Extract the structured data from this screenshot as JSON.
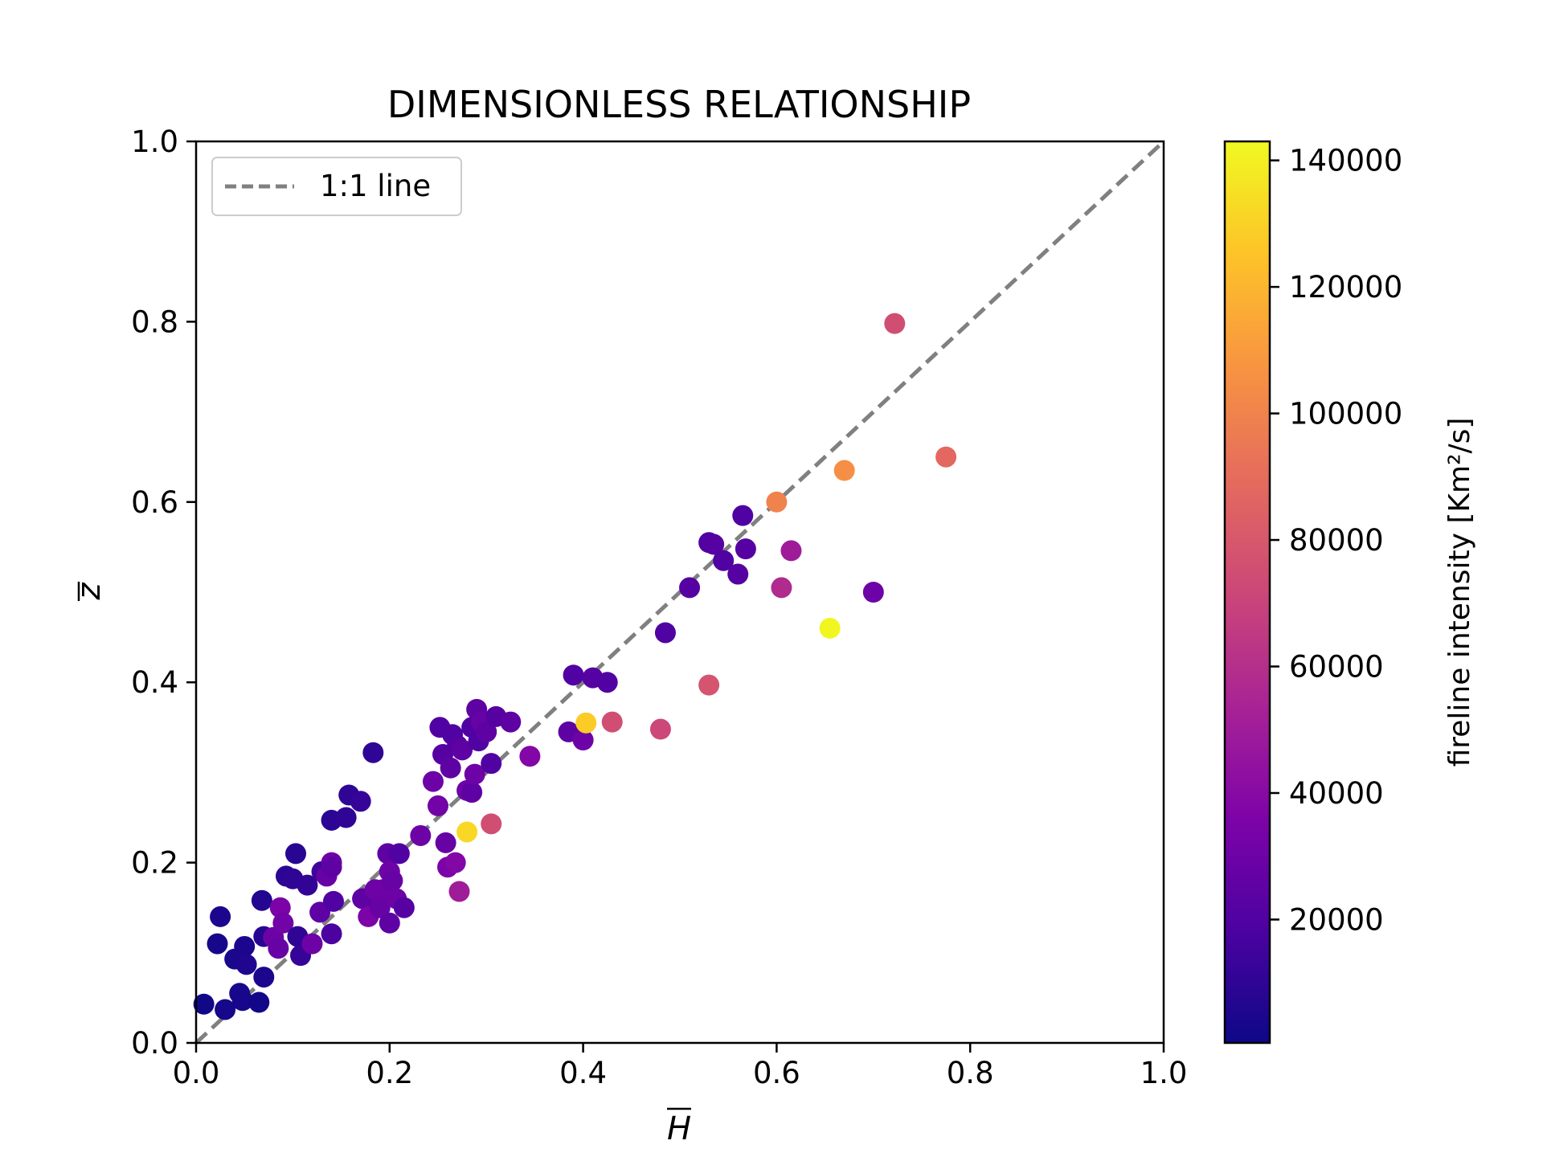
{
  "chart_data": {
    "type": "scatter",
    "title": "DIMENSIONLESS RELATIONSHIP",
    "xlabel": "H",
    "ylabel": "z",
    "xlim": [
      0.0,
      1.0
    ],
    "ylim": [
      0.0,
      1.0
    ],
    "xticks": [
      "0.0",
      "0.2",
      "0.4",
      "0.6",
      "0.8",
      "1.0"
    ],
    "yticks": [
      "0.0",
      "0.2",
      "0.4",
      "0.6",
      "0.8",
      "1.0"
    ],
    "grid": false,
    "legend": {
      "placement": "top-left",
      "entries": [
        "1:1 line"
      ]
    },
    "reference_line": {
      "name": "1:1 line",
      "style": "dashed",
      "color": "#808080",
      "x": [
        0,
        1
      ],
      "y": [
        0,
        1
      ]
    },
    "colorbar": {
      "label": "fireline intensity [Km²/s]",
      "colormap": "plasma",
      "min": 500,
      "max": 143000,
      "ticks": [
        20000,
        40000,
        60000,
        80000,
        100000,
        120000,
        140000
      ],
      "tick_labels": [
        "20000",
        "40000",
        "60000",
        "80000",
        "100000",
        "120000",
        "140000"
      ]
    },
    "points": [
      {
        "x": 0.008,
        "y": 0.043,
        "c": 1500
      },
      {
        "x": 0.03,
        "y": 0.037,
        "c": 3000
      },
      {
        "x": 0.045,
        "y": 0.055,
        "c": 4000
      },
      {
        "x": 0.048,
        "y": 0.047,
        "c": 3500
      },
      {
        "x": 0.065,
        "y": 0.045,
        "c": 2000
      },
      {
        "x": 0.07,
        "y": 0.073,
        "c": 5000
      },
      {
        "x": 0.022,
        "y": 0.11,
        "c": 3000
      },
      {
        "x": 0.025,
        "y": 0.14,
        "c": 5000
      },
      {
        "x": 0.04,
        "y": 0.093,
        "c": 4000
      },
      {
        "x": 0.05,
        "y": 0.107,
        "c": 5000
      },
      {
        "x": 0.052,
        "y": 0.087,
        "c": 6000
      },
      {
        "x": 0.068,
        "y": 0.158,
        "c": 7000
      },
      {
        "x": 0.07,
        "y": 0.118,
        "c": 8000
      },
      {
        "x": 0.08,
        "y": 0.117,
        "c": 30000
      },
      {
        "x": 0.085,
        "y": 0.105,
        "c": 28000
      },
      {
        "x": 0.087,
        "y": 0.15,
        "c": 35000
      },
      {
        "x": 0.09,
        "y": 0.133,
        "c": 32000
      },
      {
        "x": 0.093,
        "y": 0.185,
        "c": 9000
      },
      {
        "x": 0.1,
        "y": 0.182,
        "c": 10000
      },
      {
        "x": 0.103,
        "y": 0.21,
        "c": 8000
      },
      {
        "x": 0.105,
        "y": 0.118,
        "c": 10000
      },
      {
        "x": 0.108,
        "y": 0.097,
        "c": 12000
      },
      {
        "x": 0.115,
        "y": 0.175,
        "c": 11000
      },
      {
        "x": 0.12,
        "y": 0.11,
        "c": 30000
      },
      {
        "x": 0.128,
        "y": 0.145,
        "c": 25000
      },
      {
        "x": 0.13,
        "y": 0.19,
        "c": 15000
      },
      {
        "x": 0.135,
        "y": 0.185,
        "c": 28000
      },
      {
        "x": 0.14,
        "y": 0.2,
        "c": 30000
      },
      {
        "x": 0.14,
        "y": 0.195,
        "c": 25000
      },
      {
        "x": 0.14,
        "y": 0.121,
        "c": 18000
      },
      {
        "x": 0.142,
        "y": 0.157,
        "c": 20000
      },
      {
        "x": 0.14,
        "y": 0.247,
        "c": 9000
      },
      {
        "x": 0.155,
        "y": 0.25,
        "c": 10000
      },
      {
        "x": 0.158,
        "y": 0.275,
        "c": 10000
      },
      {
        "x": 0.17,
        "y": 0.268,
        "c": 12000
      },
      {
        "x": 0.172,
        "y": 0.16,
        "c": 25000
      },
      {
        "x": 0.178,
        "y": 0.14,
        "c": 35000
      },
      {
        "x": 0.183,
        "y": 0.322,
        "c": 10000
      },
      {
        "x": 0.185,
        "y": 0.17,
        "c": 30000
      },
      {
        "x": 0.19,
        "y": 0.15,
        "c": 28000
      },
      {
        "x": 0.193,
        "y": 0.17,
        "c": 30000
      },
      {
        "x": 0.198,
        "y": 0.21,
        "c": 25000
      },
      {
        "x": 0.2,
        "y": 0.133,
        "c": 25000
      },
      {
        "x": 0.2,
        "y": 0.19,
        "c": 30000
      },
      {
        "x": 0.203,
        "y": 0.18,
        "c": 28000
      },
      {
        "x": 0.207,
        "y": 0.16,
        "c": 30000
      },
      {
        "x": 0.21,
        "y": 0.21,
        "c": 20000
      },
      {
        "x": 0.215,
        "y": 0.15,
        "c": 22000
      },
      {
        "x": 0.232,
        "y": 0.23,
        "c": 30000
      },
      {
        "x": 0.245,
        "y": 0.29,
        "c": 30000
      },
      {
        "x": 0.25,
        "y": 0.263,
        "c": 32000
      },
      {
        "x": 0.252,
        "y": 0.35,
        "c": 20000
      },
      {
        "x": 0.255,
        "y": 0.32,
        "c": 22000
      },
      {
        "x": 0.258,
        "y": 0.222,
        "c": 28000
      },
      {
        "x": 0.26,
        "y": 0.195,
        "c": 35000
      },
      {
        "x": 0.263,
        "y": 0.305,
        "c": 25000
      },
      {
        "x": 0.265,
        "y": 0.342,
        "c": 20000
      },
      {
        "x": 0.268,
        "y": 0.2,
        "c": 38000
      },
      {
        "x": 0.27,
        "y": 0.33,
        "c": 22000
      },
      {
        "x": 0.272,
        "y": 0.168,
        "c": 50000
      },
      {
        "x": 0.275,
        "y": 0.325,
        "c": 25000
      },
      {
        "x": 0.28,
        "y": 0.28,
        "c": 30000
      },
      {
        "x": 0.285,
        "y": 0.35,
        "c": 20000
      },
      {
        "x": 0.285,
        "y": 0.278,
        "c": 25000
      },
      {
        "x": 0.288,
        "y": 0.298,
        "c": 30000
      },
      {
        "x": 0.29,
        "y": 0.37,
        "c": 25000
      },
      {
        "x": 0.292,
        "y": 0.335,
        "c": 20000
      },
      {
        "x": 0.295,
        "y": 0.356,
        "c": 28000
      },
      {
        "x": 0.3,
        "y": 0.345,
        "c": 25000
      },
      {
        "x": 0.305,
        "y": 0.31,
        "c": 20000
      },
      {
        "x": 0.31,
        "y": 0.362,
        "c": 22000
      },
      {
        "x": 0.325,
        "y": 0.356,
        "c": 25000
      },
      {
        "x": 0.345,
        "y": 0.318,
        "c": 38000
      },
      {
        "x": 0.28,
        "y": 0.234,
        "c": 132000
      },
      {
        "x": 0.305,
        "y": 0.243,
        "c": 75000
      },
      {
        "x": 0.385,
        "y": 0.345,
        "c": 25000
      },
      {
        "x": 0.39,
        "y": 0.408,
        "c": 20000
      },
      {
        "x": 0.4,
        "y": 0.336,
        "c": 30000
      },
      {
        "x": 0.403,
        "y": 0.355,
        "c": 128000
      },
      {
        "x": 0.41,
        "y": 0.405,
        "c": 22000
      },
      {
        "x": 0.425,
        "y": 0.4,
        "c": 20000
      },
      {
        "x": 0.43,
        "y": 0.356,
        "c": 75000
      },
      {
        "x": 0.48,
        "y": 0.348,
        "c": 72000
      },
      {
        "x": 0.485,
        "y": 0.455,
        "c": 20000
      },
      {
        "x": 0.51,
        "y": 0.505,
        "c": 22000
      },
      {
        "x": 0.53,
        "y": 0.555,
        "c": 20000
      },
      {
        "x": 0.535,
        "y": 0.553,
        "c": 22000
      },
      {
        "x": 0.53,
        "y": 0.397,
        "c": 78000
      },
      {
        "x": 0.545,
        "y": 0.535,
        "c": 20000
      },
      {
        "x": 0.56,
        "y": 0.52,
        "c": 22000
      },
      {
        "x": 0.565,
        "y": 0.585,
        "c": 20000
      },
      {
        "x": 0.568,
        "y": 0.548,
        "c": 22000
      },
      {
        "x": 0.6,
        "y": 0.6,
        "c": 100000
      },
      {
        "x": 0.605,
        "y": 0.505,
        "c": 58000
      },
      {
        "x": 0.615,
        "y": 0.546,
        "c": 50000
      },
      {
        "x": 0.655,
        "y": 0.46,
        "c": 142000
      },
      {
        "x": 0.67,
        "y": 0.635,
        "c": 105000
      },
      {
        "x": 0.7,
        "y": 0.5,
        "c": 30000
      },
      {
        "x": 0.722,
        "y": 0.798,
        "c": 75000
      },
      {
        "x": 0.775,
        "y": 0.65,
        "c": 88000
      }
    ]
  }
}
